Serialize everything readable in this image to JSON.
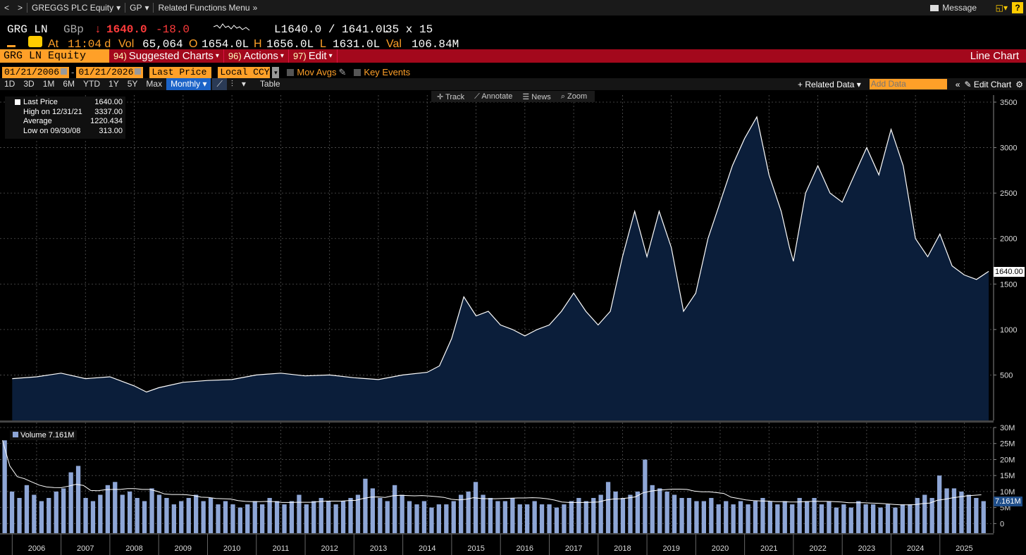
{
  "nav": {
    "back": "<",
    "forward": ">",
    "security": "GREGGS PLC Equity",
    "function": "GP",
    "related": "Related Functions Menu",
    "message": "Message",
    "help": "?"
  },
  "quote": {
    "ticker": "GRG LN",
    "currency": "GBp",
    "arrow": "↓",
    "last": "1640.0",
    "change": "-18.0",
    "bid_ask": "L1640.0 / 1641.0L",
    "size": "35 x 15",
    "at_label": "At",
    "time": "11:04",
    "d": "d",
    "vol_label": "Vol",
    "vol": "65,064",
    "o_label": "O",
    "open": "1654.0L",
    "h_label": "H",
    "high": "1656.0L",
    "l_label": "L",
    "low": "1631.0L",
    "val_label": "Val",
    "val": "106.84M"
  },
  "menubar": {
    "security": "GRG LN Equity",
    "items": [
      {
        "num": "94)",
        "label": "Suggested Charts"
      },
      {
        "num": "96)",
        "label": "Actions"
      },
      {
        "num": "97)",
        "label": "Edit"
      }
    ],
    "title": "Line Chart"
  },
  "daterow": {
    "start": "01/21/2006",
    "dash": "-",
    "end": "01/21/2026",
    "field": "Last Price",
    "ccy": "Local CCY",
    "movavgs": "Mov Avgs",
    "keyevents": "Key Events"
  },
  "periods": [
    "1D",
    "3D",
    "1M",
    "6M",
    "YTD",
    "1Y",
    "5Y",
    "Max"
  ],
  "period_selected": "Monthly",
  "table_label": "Table",
  "related_data": "Related Data",
  "add_data_placeholder": "Add Data",
  "edit_chart": "Edit Chart",
  "tools": [
    "Track",
    "Annotate",
    "News",
    "Zoom"
  ],
  "legend": {
    "last_label": "Last Price",
    "last_value": "1640.00",
    "high_label": "High on 12/31/21",
    "high_value": "3337.00",
    "avg_label": "Average",
    "avg_value": "1220.434",
    "low_label": "Low on 09/30/08",
    "low_value": "313.00"
  },
  "volume_legend": "Volume 7.161M",
  "last_price_tag": "1640.00",
  "volume_tag": "7.161M",
  "colors": {
    "accent": "#ffa028",
    "menubar": "#a3081c",
    "area": "#0b1e3a",
    "volume": "#8ea6d6"
  },
  "chart_data": [
    {
      "type": "area",
      "series_name": "Last Price",
      "ylim": [
        0,
        3500
      ],
      "y_ticks": [
        "500",
        "1000",
        "1500",
        "2000",
        "2500",
        "3000",
        "3500"
      ],
      "x_ticks": [
        "2006",
        "2007",
        "2008",
        "2009",
        "2010",
        "2011",
        "2012",
        "2013",
        "2014",
        "2015",
        "2016",
        "2017",
        "2018",
        "2019",
        "2020",
        "2021",
        "2022",
        "2023",
        "2024",
        "2025"
      ],
      "x": [
        2006.0,
        2006.5,
        2007.0,
        2007.5,
        2008.0,
        2008.5,
        2008.75,
        2009.0,
        2009.5,
        2010.0,
        2010.5,
        2011.0,
        2011.5,
        2012.0,
        2012.5,
        2013.0,
        2013.5,
        2014.0,
        2014.5,
        2014.75,
        2015.0,
        2015.25,
        2015.5,
        2015.75,
        2016.0,
        2016.25,
        2016.5,
        2016.75,
        2017.0,
        2017.25,
        2017.5,
        2017.75,
        2018.0,
        2018.25,
        2018.5,
        2018.75,
        2019.0,
        2019.25,
        2019.5,
        2019.75,
        2020.0,
        2020.25,
        2020.5,
        2020.75,
        2021.0,
        2021.25,
        2021.5,
        2021.75,
        2021.92,
        2022.0,
        2022.25,
        2022.5,
        2022.75,
        2023.0,
        2023.25,
        2023.5,
        2023.75,
        2024.0,
        2024.25,
        2024.5,
        2024.75,
        2025.0,
        2025.25,
        2025.5,
        2025.75,
        2026.0
      ],
      "y": [
        460,
        480,
        520,
        460,
        480,
        380,
        313,
        360,
        420,
        440,
        450,
        500,
        520,
        490,
        500,
        470,
        450,
        500,
        530,
        600,
        900,
        1360,
        1150,
        1200,
        1050,
        1000,
        930,
        1000,
        1050,
        1200,
        1400,
        1200,
        1050,
        1200,
        1800,
        2300,
        1800,
        2300,
        1900,
        1200,
        1400,
        2000,
        2400,
        2800,
        3100,
        3337,
        2700,
        2300,
        1900,
        1750,
        2500,
        2800,
        2500,
        2400,
        2700,
        3000,
        2700,
        3200,
        2800,
        2000,
        1800,
        2050,
        1700,
        1600,
        1550,
        1640
      ]
    },
    {
      "type": "bar",
      "series_name": "Volume",
      "ylim": [
        0,
        30
      ],
      "y_ticks": [
        "0",
        "5M",
        "10M",
        "15M",
        "20M",
        "25M",
        "30M"
      ],
      "values_million": [
        26,
        10,
        8,
        12,
        9,
        7,
        8,
        10,
        11,
        16,
        18,
        8,
        7,
        9,
        12,
        13,
        9,
        10,
        8,
        7,
        11,
        9,
        8,
        6,
        7,
        8,
        9,
        7,
        8,
        6,
        7,
        6,
        5,
        6,
        7,
        6,
        8,
        7,
        6,
        7,
        9,
        6,
        7,
        8,
        7,
        6,
        7,
        8,
        9,
        14,
        11,
        8,
        7,
        12,
        9,
        7,
        6,
        7,
        5,
        6,
        6,
        7,
        9,
        10,
        13,
        9,
        8,
        7,
        7,
        8,
        6,
        6,
        7,
        6,
        6,
        5,
        6,
        7,
        8,
        7,
        8,
        9,
        13,
        10,
        8,
        9,
        10,
        20,
        12,
        11,
        10,
        9,
        8,
        8,
        7,
        7,
        8,
        6,
        7,
        6,
        7,
        6,
        7,
        8,
        7,
        6,
        7,
        6,
        8,
        7,
        8,
        6,
        7,
        5,
        6,
        5,
        7,
        6,
        6,
        5,
        6,
        5,
        6,
        6,
        8,
        9,
        8,
        15,
        11,
        11,
        10,
        9,
        8,
        7
      ]
    }
  ]
}
